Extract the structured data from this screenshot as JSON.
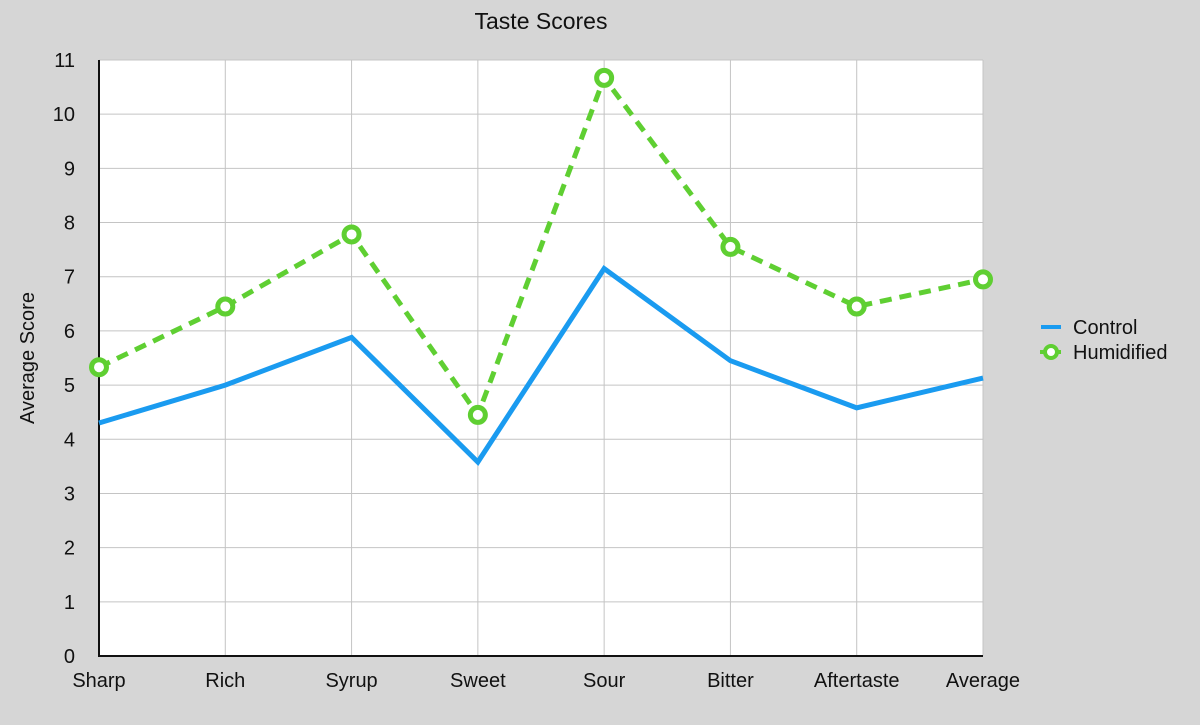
{
  "chart_data": {
    "type": "line",
    "title": "Taste Scores",
    "xlabel": "",
    "ylabel": "Average Score",
    "categories": [
      "Sharp",
      "Rich",
      "Syrup",
      "Sweet",
      "Sour",
      "Bitter",
      "Aftertaste",
      "Average"
    ],
    "ylim": [
      0,
      11
    ],
    "yticks": [
      "0",
      "1",
      "2",
      "3",
      "4",
      "5",
      "6",
      "7",
      "8",
      "9",
      "10",
      "11"
    ],
    "grid": true,
    "legend_position": "right",
    "series": [
      {
        "name": "Control",
        "values": [
          4.3,
          5.0,
          5.88,
          3.58,
          7.15,
          5.45,
          4.58,
          5.13
        ],
        "color": "#1a9bf0",
        "style": "solid",
        "markers": false
      },
      {
        "name": "Humidified",
        "values": [
          5.33,
          6.45,
          7.78,
          4.45,
          10.67,
          7.55,
          6.45,
          6.95
        ],
        "color": "#5fcf32",
        "style": "dashed",
        "markers": true
      }
    ]
  }
}
